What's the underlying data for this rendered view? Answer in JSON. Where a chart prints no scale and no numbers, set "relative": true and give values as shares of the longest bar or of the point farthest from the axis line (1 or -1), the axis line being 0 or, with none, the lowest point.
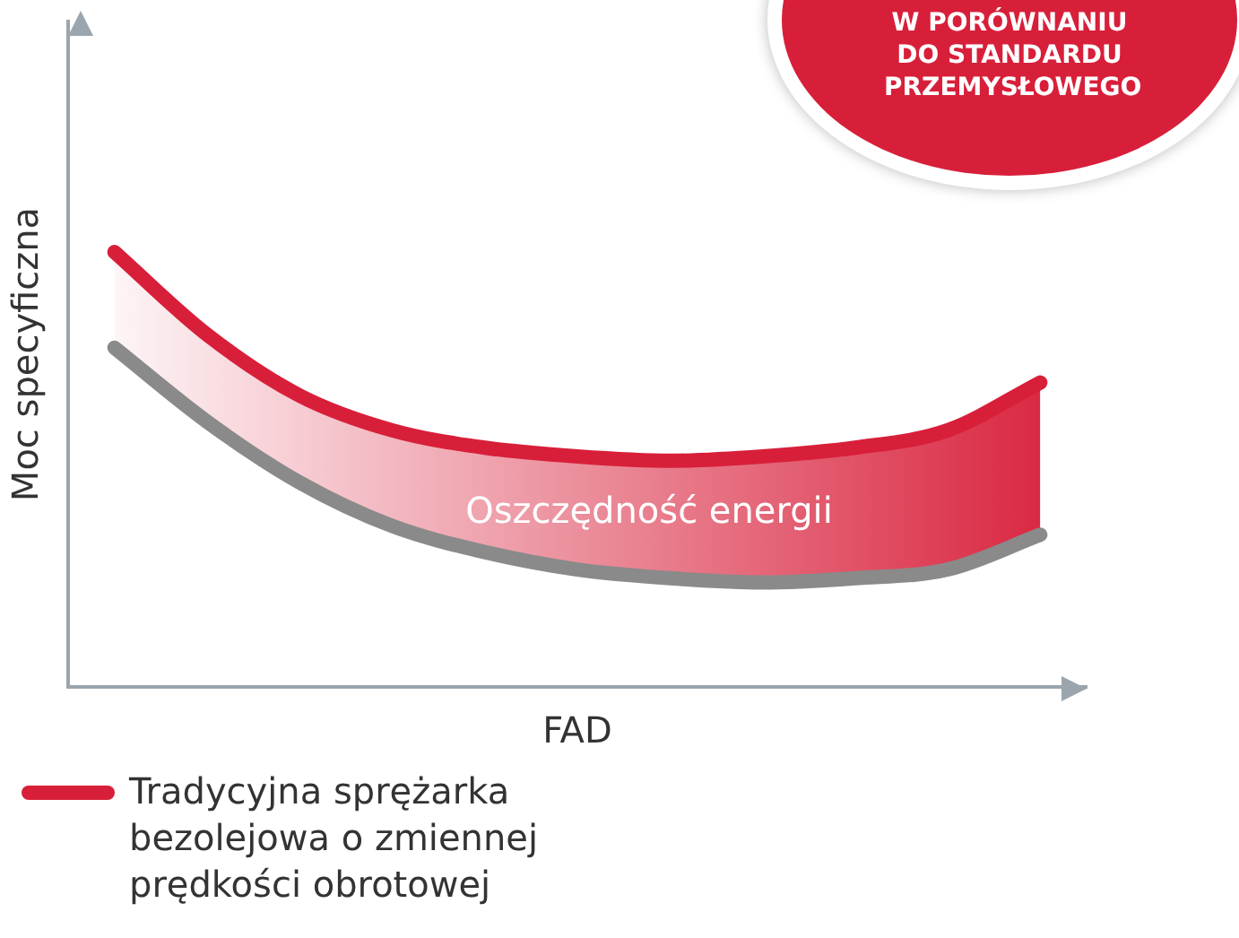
{
  "chart_data": {
    "type": "line",
    "relative": true,
    "xlabel": "FAD",
    "ylabel": "Moc specyficzna",
    "categories": [
      null,
      null,
      null,
      null,
      null,
      null,
      null,
      null,
      null,
      null,
      null
    ],
    "series": [
      {
        "name": "Tradycyjna sprężarka bezolejowa o zmiennej prędkości obrotowej",
        "color": "#d81f3a",
        "values": [
          1.0,
          0.81,
          0.67,
          0.59,
          0.55,
          0.53,
          0.52,
          0.53,
          0.55,
          0.59,
          0.7
        ],
        "lower": [
          0.78,
          0.61,
          0.47,
          0.37,
          0.31,
          0.27,
          0.25,
          0.24,
          0.25,
          0.27,
          0.35
        ],
        "upper": [
          1.0,
          0.81,
          0.67,
          0.59,
          0.55,
          0.53,
          0.52,
          0.53,
          0.55,
          0.59,
          0.7
        ]
      },
      {
        "color": "#8a8a8a",
        "values": [
          0.78,
          0.61,
          0.47,
          0.37,
          0.31,
          0.27,
          0.25,
          0.24,
          0.25,
          0.27,
          0.35
        ]
      }
    ],
    "annotations": [
      "W PORÓWNANIU DO STANDARDU PRZEMYSŁOWEGO",
      "Oszczędność energii"
    ],
    "legend": "bottom",
    "grid": false,
    "marker": "none",
    "line_style": "solid"
  }
}
